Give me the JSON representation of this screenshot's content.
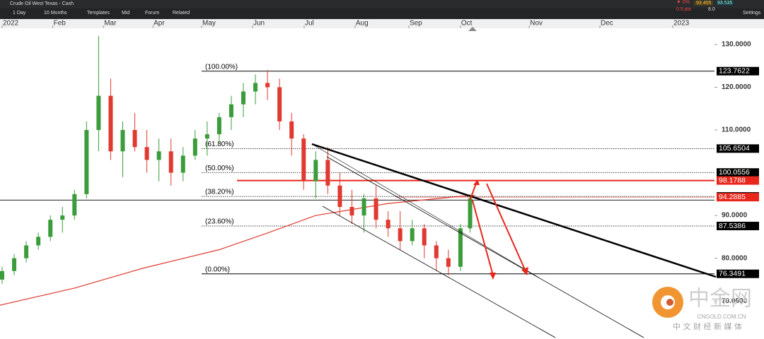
{
  "toolbar": {
    "instrument": "Crude Oil West Texas - Cash",
    "interval": "1 Day",
    "range": "10 Months",
    "templates": "Templates",
    "price_type": "Mid",
    "forum": "Forum",
    "related": "Related",
    "change_pct": "▼ 0%",
    "change_pts": "0.5 pts",
    "bid": "93.455",
    "spread": "8.0",
    "ask": "93.535",
    "settings": "Settings"
  },
  "watermark": {
    "brand": "中金网",
    "site": "CNGOLD.COM.CN",
    "slogan": "中 文 财 经 新 媒 体"
  },
  "chart_data": {
    "type": "candlestick",
    "up_color": "#3b9c3b",
    "down_color": "#e0392f",
    "x": [
      0,
      5,
      10,
      15,
      20,
      25,
      30,
      35,
      40,
      45,
      50,
      55,
      60,
      65,
      70,
      75,
      80,
      85,
      90,
      95,
      100,
      105,
      110,
      115,
      120,
      125,
      130,
      135,
      140,
      145,
      150,
      155,
      160,
      165,
      170,
      175,
      180,
      185,
      190,
      194
    ],
    "open": [
      75,
      77,
      80,
      83,
      85,
      89,
      90,
      95,
      110,
      118,
      105,
      110,
      106,
      103,
      105,
      100,
      104,
      108,
      109,
      113,
      116,
      119,
      121,
      120,
      112,
      108,
      98,
      103,
      97,
      92,
      90,
      94,
      89,
      87,
      84,
      87,
      83,
      80,
      78,
      87
    ],
    "high": [
      78,
      81,
      84,
      86,
      90,
      92,
      96,
      112,
      132,
      122,
      112,
      114,
      110,
      108,
      108,
      106,
      110,
      112,
      114,
      118,
      121,
      123,
      124,
      122,
      114,
      109,
      105,
      106,
      100,
      96,
      95,
      97,
      91,
      91,
      89,
      88,
      84,
      82,
      88,
      95
    ],
    "low": [
      74,
      76,
      79,
      82,
      84,
      86,
      89,
      94,
      105,
      103,
      99,
      105,
      100,
      98,
      97,
      98,
      103,
      104,
      107,
      110,
      113,
      116,
      117,
      110,
      104,
      96,
      94,
      95,
      90,
      88,
      86,
      87,
      85,
      82,
      83,
      80,
      77,
      76,
      77,
      86
    ],
    "close": [
      77,
      80,
      83,
      85,
      89,
      90,
      95,
      110,
      118,
      105,
      110,
      106,
      103,
      105,
      100,
      104,
      108,
      109,
      113,
      116,
      119,
      121,
      120,
      112,
      108,
      98,
      103,
      97,
      92,
      90,
      94,
      89,
      87,
      84,
      87,
      83,
      80,
      78,
      87,
      94
    ],
    "moving_average": {
      "color": "#e0392f",
      "x": [
        -1,
        30,
        58,
        90,
        110,
        130,
        160,
        190,
        196
      ],
      "values": [
        69,
        73,
        77.6,
        82,
        85.9,
        90,
        92.8,
        94.5,
        94.7
      ]
    },
    "levels": [
      {
        "label": "(100.00%)",
        "value": 123.7622
      },
      {
        "label": "(61.80%)",
        "value": 105.6504
      },
      {
        "label": "(50.00%)",
        "value": 100.0556
      },
      {
        "label": "(38.20%)",
        "value": 94.4611
      },
      {
        "label": "(23.60%)",
        "value": 87.5386
      },
      {
        "label": "(0.00%)",
        "value": 76.3491
      }
    ],
    "support_line": 93.6,
    "resistance_line": {
      "value": 98.1788,
      "color": "#e8261b"
    },
    "last_price": {
      "value": 94.2885,
      "color": "#e8261b"
    },
    "xlim": [
      -0.88,
      295.3
    ],
    "xticks": [
      {
        "value": 0,
        "label": "2022"
      },
      {
        "value": 21,
        "label": "Feb"
      },
      {
        "value": 42,
        "label": "Mar"
      },
      {
        "value": 62.5,
        "label": "Apr"
      },
      {
        "value": 82.7,
        "label": "May"
      },
      {
        "value": 103.8,
        "label": "Jun"
      },
      {
        "value": 125.2,
        "label": "Jul"
      },
      {
        "value": 146.3,
        "label": "Aug"
      },
      {
        "value": 168.6,
        "label": "Sep"
      },
      {
        "value": 190,
        "label": "Oct"
      },
      {
        "value": 218.5,
        "label": "Nov"
      },
      {
        "value": 247.8,
        "label": "Dec"
      },
      {
        "value": 278,
        "label": "2023"
      }
    ],
    "ylim": [
      61.1,
      133.8
    ],
    "yticks": [
      {
        "value": 70,
        "label": "70.0000"
      },
      {
        "value": 80,
        "label": "80.0000"
      },
      {
        "value": 90,
        "label": "90.0000"
      },
      {
        "value": 110,
        "label": "110.0000"
      },
      {
        "value": 120,
        "label": "120.0000"
      },
      {
        "value": 130,
        "label": "130.0000"
      }
    ]
  }
}
